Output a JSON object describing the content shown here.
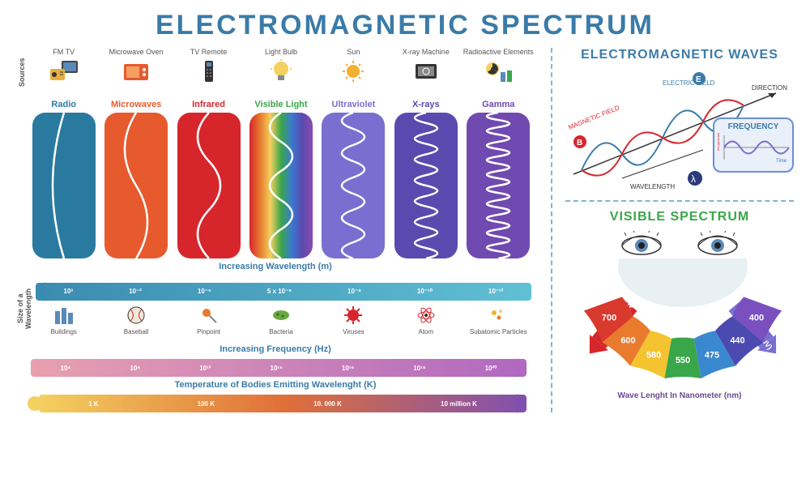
{
  "title": "ELECTROMAGNETIC SPECTRUM",
  "sources_label": "Sources",
  "sources": [
    {
      "label": "FM  TV",
      "name": "radio-tv-icon"
    },
    {
      "label": "Microwave Oven",
      "name": "microwave-icon"
    },
    {
      "label": "TV Remote",
      "name": "remote-icon"
    },
    {
      "label": "Light Bulb",
      "name": "lightbulb-icon"
    },
    {
      "label": "Sun",
      "name": "sun-icon"
    },
    {
      "label": "X-ray Machine",
      "name": "xray-icon"
    },
    {
      "label": "Radioactive Elements",
      "name": "radioactive-icon"
    }
  ],
  "bands": [
    {
      "name": "Radio",
      "color": "#2a7aa0",
      "bg": "#2a7aa0",
      "waves": 1
    },
    {
      "name": "Microwaves",
      "color": "#e65a2e",
      "bg": "#e65a2e",
      "waves": 2
    },
    {
      "name": "Infrared",
      "color": "#d6262c",
      "bg": "#d6262c",
      "waves": 3
    },
    {
      "name": "Visible Light",
      "color": "#3aa64a",
      "bg": "rainbow",
      "waves": 5
    },
    {
      "name": "Ultraviolet",
      "color": "#7a6fd0",
      "bg": "#7a6fd0",
      "waves": 9
    },
    {
      "name": "X-rays",
      "color": "#5a4ab0",
      "bg": "#5a4ab0",
      "waves": 14
    },
    {
      "name": "Gamma",
      "color": "#704ab0",
      "bg": "#704ab0",
      "waves": 20
    }
  ],
  "wavelength": {
    "title": "Increasing Wavelength (m)",
    "gradient": [
      "#3a8bb0",
      "#60c0d4"
    ],
    "ticks": [
      "10³",
      "10⁻²",
      "10⁻⁵",
      "5 x 10⁻⁶",
      "10⁻⁸",
      "10⁻¹⁰",
      "10⁻¹²"
    ]
  },
  "size_label": "Size of a Wavelength",
  "sizes": [
    {
      "label": "Buildings",
      "name": "buildings-icon"
    },
    {
      "label": "Baseball",
      "name": "baseball-icon"
    },
    {
      "label": "Pinpoint",
      "name": "pinpoint-icon"
    },
    {
      "label": "Bacteria",
      "name": "bacteria-icon"
    },
    {
      "label": "Viruses",
      "name": "virus-icon"
    },
    {
      "label": "Atom",
      "name": "atom-icon"
    },
    {
      "label": "Subatomic Particles",
      "name": "particle-icon"
    }
  ],
  "frequency": {
    "title": "Increasing Frequency (Hz)",
    "gradient": [
      "#e8a0b0",
      "#b068c0"
    ],
    "ticks": [
      "10⁴",
      "10⁸",
      "10¹²",
      "10¹⁵",
      "10¹⁶",
      "10¹⁸",
      "10²⁰"
    ]
  },
  "temperature": {
    "title": "Temperature of Bodies Emitting Wavelenght (K)",
    "gradient": [
      "#f4d060",
      "#e07038",
      "#8050b0"
    ],
    "ticks": [
      "1 K",
      "100 K",
      "10. 000 K",
      "10 million K"
    ]
  },
  "waves_section": {
    "title": "ELECTROMAGNETIC WAVES",
    "title_color": "#3a7ba8",
    "labels": {
      "electric": "ELECTRIC FIELD",
      "electric_color": "#3a7ba8",
      "magnetic": "MAGNETIC FIELD",
      "magnetic_color": "#d6262c",
      "direction": "DIRECTION",
      "wavelength": "WAVELENGTH",
      "lambda": "λ",
      "E": "E",
      "B": "B"
    },
    "freq_box": {
      "title": "FREQUENCY",
      "y": "Amplitude",
      "x": "Time",
      "wave_color": "#7a6fd0"
    }
  },
  "visible_section": {
    "title": "VISIBLE SPECTRUM",
    "title_color": "#3aa64a",
    "ir": "Infrared (IR)",
    "ir_color": "#d6262c",
    "uv": "Ultraviolet (UV)",
    "uv_color": "#7a6fd0",
    "nm_values": [
      "700",
      "600",
      "580",
      "550",
      "475",
      "440",
      "400"
    ],
    "nm_colors": [
      "#d93a2e",
      "#ea7a2e",
      "#f4c430",
      "#3aa64a",
      "#3a88d0",
      "#4a4ab0",
      "#7a50c0"
    ],
    "caption": "Wave Lenght In Nanometer (nm)"
  }
}
